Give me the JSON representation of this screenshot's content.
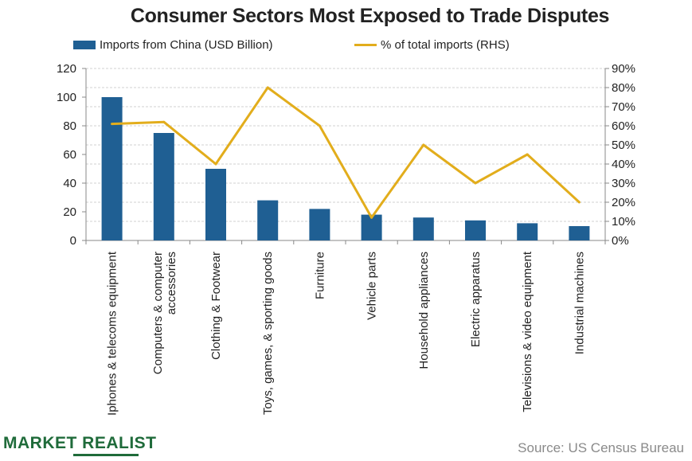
{
  "chart_data": {
    "type": "bar",
    "title": "Consumer Sectors Most Exposed to Trade Disputes",
    "categories": [
      "Iphones & telecoms equipment",
      "Computers & computer accessories",
      "Clothing & Footwear",
      "Toys, games, & sporting goods",
      "Furniture",
      "Vehicle parts",
      "Household appliances",
      "Electric apparatus",
      "Televisions & video equipment",
      "Industrial machines"
    ],
    "category_lines": [
      [
        "Iphones & telecoms equipment"
      ],
      [
        "Computers & computer",
        "accessories"
      ],
      [
        "Clothing & Footwear"
      ],
      [
        "Toys, games, & sporting goods"
      ],
      [
        "Furniture"
      ],
      [
        "Vehicle parts"
      ],
      [
        "Household appliances"
      ],
      [
        "Electric apparatus"
      ],
      [
        "Televisions & video equipment"
      ],
      [
        "Industrial machines"
      ]
    ],
    "series": [
      {
        "name": "Imports from China (USD Billion)",
        "kind": "bar",
        "axis": "left",
        "color": "#1f5f93",
        "values": [
          100,
          75,
          50,
          28,
          22,
          18,
          16,
          14,
          12,
          10
        ]
      },
      {
        "name": "% of total imports (RHS)",
        "kind": "line",
        "axis": "right",
        "color": "#e2ad1c",
        "values": [
          61,
          62,
          40,
          80,
          60,
          12,
          50,
          30,
          45,
          20
        ]
      }
    ],
    "y_left": {
      "min": 0,
      "max": 120,
      "ticks": [
        0,
        20,
        40,
        60,
        80,
        100,
        120
      ]
    },
    "y_right": {
      "min": 0,
      "max": 90,
      "ticks": [
        "0%",
        "10%",
        "20%",
        "30%",
        "40%",
        "50%",
        "60%",
        "70%",
        "80%",
        "90%"
      ]
    },
    "grid": true,
    "legend_position": "top"
  },
  "brand": {
    "name": "MARKET REALIST",
    "color": "#1f6b3a"
  },
  "source": "Source: US Census Bureau"
}
